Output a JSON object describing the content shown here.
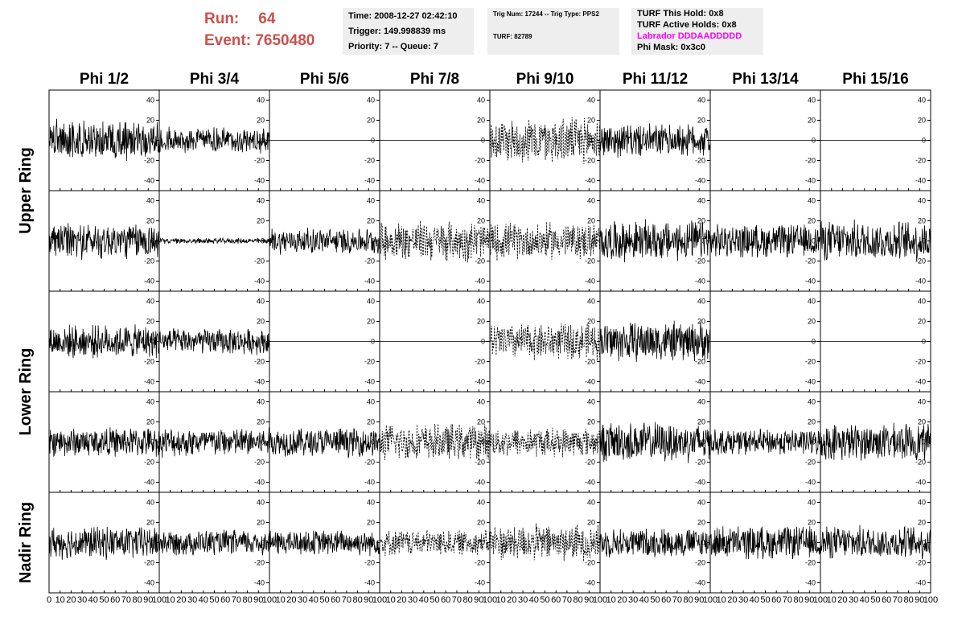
{
  "header": {
    "run_label": "Run:",
    "run_value": "64",
    "event_label": "Event:",
    "event_value": "7650480",
    "time": "Time: 2008-12-27 02:42:10",
    "trigger": "Trigger: 149.998839 ms",
    "priority": "Priority: 7 -- Queue: 7",
    "trig_num": "Trig Num: 17244 -- Trig Type: PPS2",
    "turf": "TURF: 82789",
    "turf_this_hold": "TURF This Hold: 0x8",
    "turf_active_holds": "TURF Active Holds: 0x8",
    "labrador": "Labrador DDDAADDDDD",
    "phi_mask": "Phi Mask: 0x3c0"
  },
  "colors": {
    "run_text": "#c9504c",
    "labrador_text": "#ff00ff",
    "box_bg": "#eeeeee"
  },
  "columns": [
    "Phi 1/2",
    "Phi 3/4",
    "Phi 5/6",
    "Phi 7/8",
    "Phi 9/10",
    "Phi 11/12",
    "Phi 13/14",
    "Phi 15/16"
  ],
  "rows": [
    {
      "label": "Upper Ring",
      "span": [
        0,
        1
      ]
    },
    {
      "label": "Lower Ring",
      "span": [
        2,
        3
      ]
    },
    {
      "label": "Nadir Ring",
      "span": [
        4,
        4
      ]
    }
  ],
  "y_ticks": [
    "40",
    "20",
    "0",
    "-20",
    "-40"
  ],
  "x_ticks": [
    "0",
    "10",
    "20",
    "30",
    "40",
    "50",
    "60",
    "70",
    "80",
    "90",
    "100"
  ],
  "chart_data": {
    "type": "line",
    "xlim": [
      0,
      100
    ],
    "ylim": [
      -50,
      50
    ],
    "grid": false,
    "panel_traces": [
      [
        "solid",
        "solid",
        "flat",
        "flat",
        "dashed",
        "solid",
        "flat",
        "flat"
      ],
      [
        "solid",
        "quiet",
        "solid",
        "dashed",
        "dashed",
        "solid",
        "solid",
        "solid"
      ],
      [
        "solid",
        "solid",
        "flat",
        "flat",
        "dashed",
        "solid",
        "flat",
        "flat"
      ],
      [
        "solid",
        "solid",
        "solid",
        "dashed",
        "dashed",
        "solid",
        "solid",
        "solid"
      ],
      [
        "solid",
        "solid",
        "solid",
        "dashed",
        "dashed",
        "solid",
        "solid",
        "solid"
      ]
    ],
    "panel_amplitude": [
      [
        22,
        14,
        0,
        0,
        25,
        18,
        0,
        0
      ],
      [
        20,
        3,
        14,
        22,
        20,
        22,
        18,
        22
      ],
      [
        18,
        14,
        0,
        0,
        20,
        22,
        0,
        0
      ],
      [
        16,
        16,
        16,
        20,
        16,
        22,
        14,
        20
      ],
      [
        18,
        14,
        14,
        14,
        20,
        16,
        18,
        18
      ]
    ]
  }
}
